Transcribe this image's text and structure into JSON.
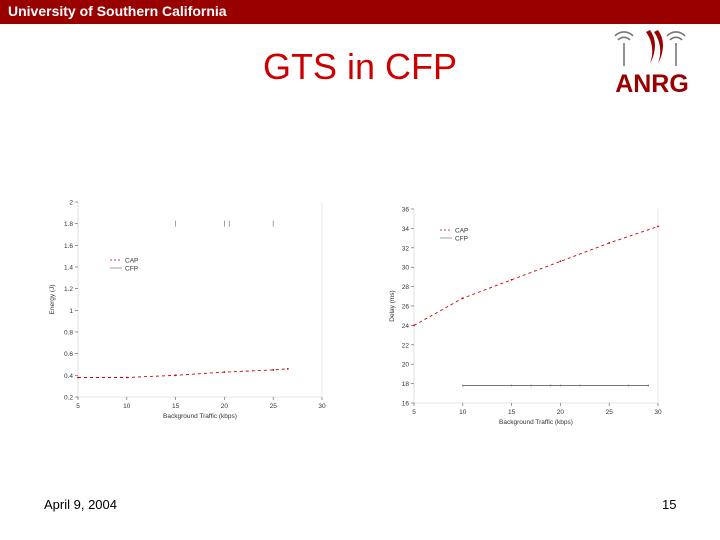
{
  "header": {
    "university": "University of Southern California"
  },
  "slide": {
    "title": "GTS in CFP",
    "date": "April 9, 2004",
    "page_number": "15"
  },
  "logo": {
    "text": "ANRG",
    "icon": "antenna-logo-icon",
    "color": "#990000"
  },
  "colors": {
    "banner": "#990000",
    "title": "#cc0000",
    "series": "#cc0000",
    "axis": "#555555"
  },
  "chart_data": [
    {
      "type": "line",
      "xlabel": "Background Traffic (kbps)",
      "ylabel": "Energy (J)",
      "xlim": [
        5,
        30
      ],
      "ylim": [
        0.2,
        2
      ],
      "x_ticks": [
        5,
        10,
        15,
        20,
        25,
        30
      ],
      "y_ticks": [
        0.2,
        0.4,
        0.6,
        0.8,
        1,
        1.2,
        1.4,
        1.6,
        1.8,
        2
      ],
      "x_tick_labels": [
        "5",
        "10",
        "15",
        "20",
        "25",
        "30"
      ],
      "y_tick_labels": [
        "0.2",
        "0.4",
        "0.6",
        "0.8",
        "1",
        "1.2",
        "1.4",
        "1.6",
        "1.8",
        "2"
      ],
      "legend_position": "upper-left",
      "series": [
        {
          "name": "CAP",
          "x": [
            5,
            10,
            15,
            20,
            25,
            26.5
          ],
          "y": [
            0.38,
            0.38,
            0.4,
            0.43,
            0.45,
            0.46
          ],
          "style": "dashed"
        },
        {
          "name": "CFP",
          "x": [
            15,
            20,
            20.5,
            25
          ],
          "y": [
            1.8,
            1.8,
            1.8,
            1.8
          ],
          "style": "points"
        }
      ]
    },
    {
      "type": "line",
      "xlabel": "Background Traffic (kbps)",
      "ylabel": "Delay (ms)",
      "xlim": [
        5,
        30
      ],
      "ylim": [
        16,
        36
      ],
      "x_ticks": [
        5,
        10,
        15,
        20,
        25,
        30
      ],
      "y_ticks": [
        16,
        18,
        20,
        22,
        24,
        26,
        28,
        30,
        32,
        34,
        36
      ],
      "x_tick_labels": [
        "5",
        "10",
        "15",
        "20",
        "25",
        "30"
      ],
      "y_tick_labels": [
        "16",
        "18",
        "20",
        "22",
        "24",
        "26",
        "28",
        "30",
        "32",
        "34",
        "36"
      ],
      "legend_position": "upper-left",
      "series": [
        {
          "name": "CAP",
          "x": [
            5,
            10,
            15,
            20,
            25,
            30
          ],
          "y": [
            24,
            26.8,
            28.7,
            30.6,
            32.5,
            34.2
          ],
          "style": "dashed"
        },
        {
          "name": "CFP",
          "x": [
            10,
            15,
            17,
            19,
            20,
            22,
            27,
            29
          ],
          "y": [
            17.8,
            17.8,
            17.8,
            17.8,
            17.8,
            17.8,
            17.8,
            17.8
          ],
          "style": "solid"
        }
      ]
    }
  ]
}
